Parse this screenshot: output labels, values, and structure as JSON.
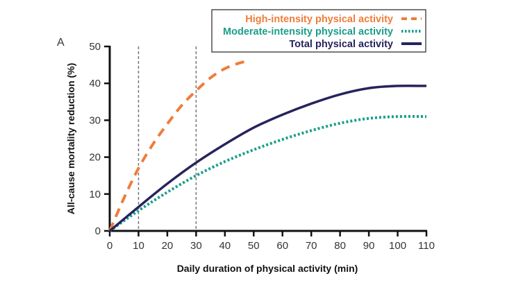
{
  "chart_data": {
    "type": "line",
    "panel_label": "A",
    "xlabel": "Daily duration of physical activity (min)",
    "ylabel": "All-cause mortality reduction (%)",
    "xlim": [
      0,
      110
    ],
    "ylim": [
      0,
      50
    ],
    "xticks": [
      0,
      10,
      20,
      30,
      40,
      50,
      60,
      70,
      80,
      90,
      100,
      110
    ],
    "yticks": [
      0,
      10,
      20,
      30,
      40,
      50
    ],
    "reference_lines_x": [
      10,
      30
    ],
    "grid": false,
    "legend_position": "top-right",
    "series": [
      {
        "name": "High-intensity physical activity",
        "color": "#ee7d3b",
        "style": "dashed",
        "x": [
          0,
          5,
          10,
          15,
          20,
          25,
          30,
          35,
          40,
          45,
          48
        ],
        "y": [
          0,
          9,
          17,
          23.5,
          29,
          34,
          38,
          41.5,
          44,
          45.5,
          46
        ]
      },
      {
        "name": "Moderate-intensity physical activity",
        "color": "#1a9e8a",
        "style": "dotted",
        "x": [
          0,
          10,
          20,
          30,
          40,
          50,
          60,
          70,
          80,
          90,
          100,
          110
        ],
        "y": [
          0,
          5.5,
          10.5,
          15,
          18.8,
          22,
          24.8,
          27.2,
          29.2,
          30.5,
          31,
          31
        ]
      },
      {
        "name": "Total physical activity",
        "color": "#27235e",
        "style": "solid",
        "x": [
          0,
          10,
          20,
          30,
          40,
          50,
          60,
          70,
          80,
          90,
          100,
          110
        ],
        "y": [
          0,
          6.5,
          12.8,
          18.5,
          23.5,
          28,
          31.5,
          34.5,
          37,
          38.7,
          39.3,
          39.3
        ]
      }
    ]
  }
}
